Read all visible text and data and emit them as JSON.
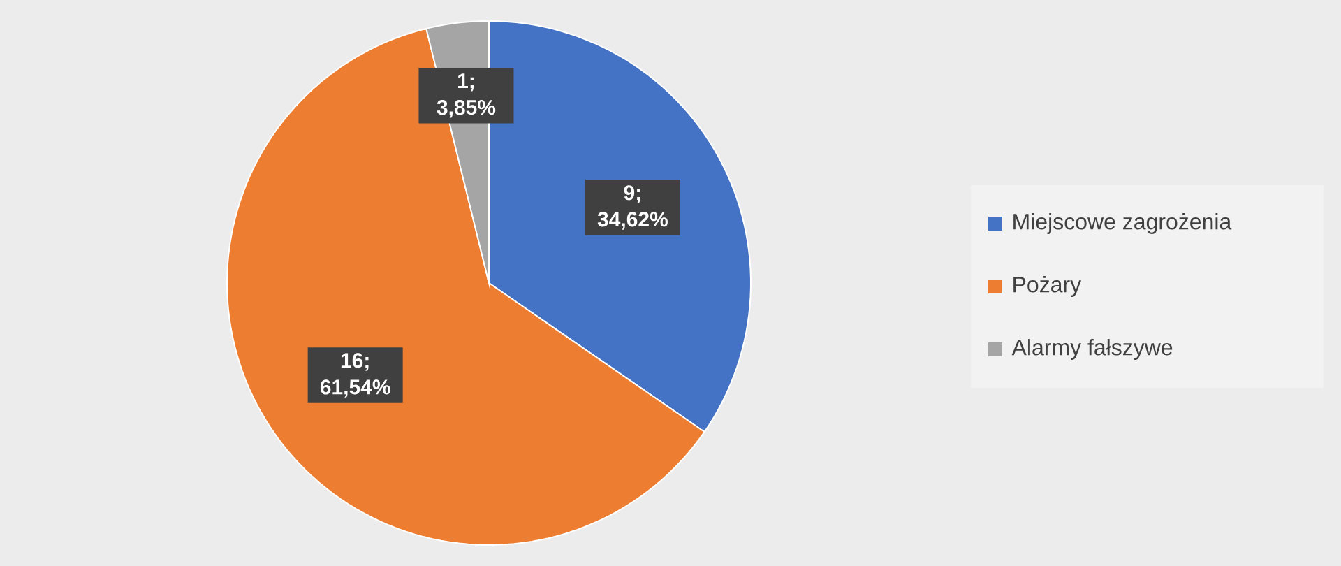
{
  "chart_data": {
    "type": "pie",
    "categories": [
      "Miejscowe zagrożenia",
      "Pożary",
      "Alarmy fałszywe"
    ],
    "values": [
      9,
      16,
      1
    ],
    "colors": [
      "#4472c4",
      "#ed7d31",
      "#a5a5a5"
    ],
    "value_labels": [
      "9; 34,62%",
      "16; 61,54%",
      "1; 3,85%"
    ],
    "legend": "right"
  }
}
